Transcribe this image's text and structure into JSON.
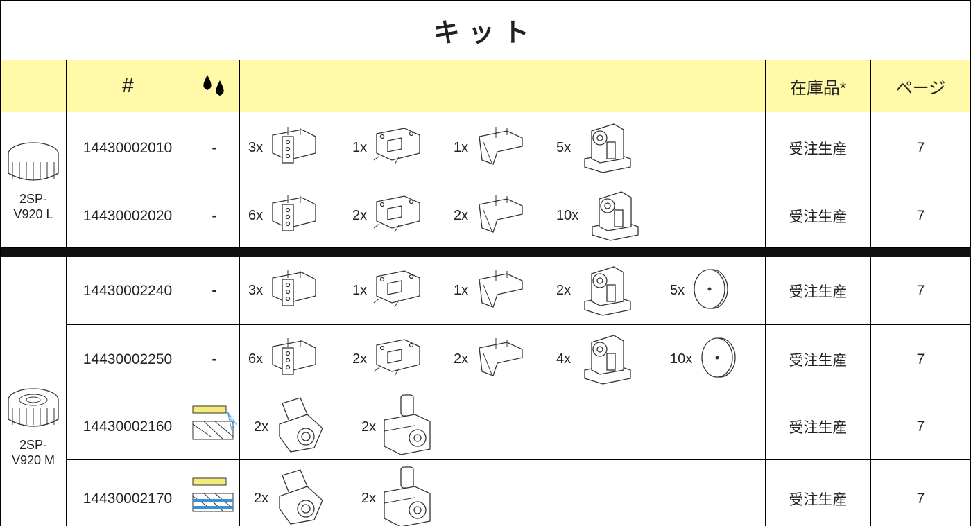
{
  "title": "キット",
  "header": {
    "number": "#",
    "stock": "在庫品*",
    "page": "ページ"
  },
  "groups": [
    {
      "label": [
        "2SP-",
        "V920 L"
      ],
      "rows": [
        {
          "number": "14430002010",
          "coolant": "-",
          "items": [
            "3x",
            "1x",
            "1x",
            "5x"
          ],
          "stock": "受注生産",
          "page": "7"
        },
        {
          "number": "14430002020",
          "coolant": "-",
          "items": [
            "6x",
            "2x",
            "2x",
            "10x"
          ],
          "stock": "受注生産",
          "page": "7"
        }
      ]
    },
    {
      "label": [
        "2SP-",
        "V920 M"
      ],
      "rows": [
        {
          "number": "14430002240",
          "coolant": "-",
          "items": [
            "3x",
            "1x",
            "1x",
            "2x",
            "5x"
          ],
          "stock": "受注生産",
          "page": "7"
        },
        {
          "number": "14430002250",
          "coolant": "-",
          "items": [
            "6x",
            "2x",
            "2x",
            "4x",
            "10x"
          ],
          "stock": "受注生産",
          "page": "7"
        },
        {
          "number": "14430002160",
          "items": [
            "2x",
            "2x"
          ],
          "stock": "受注生産",
          "page": "7"
        },
        {
          "number": "14430002170",
          "items": [
            "2x",
            "2x"
          ],
          "stock": "受注生産",
          "page": "7"
        }
      ]
    }
  ]
}
